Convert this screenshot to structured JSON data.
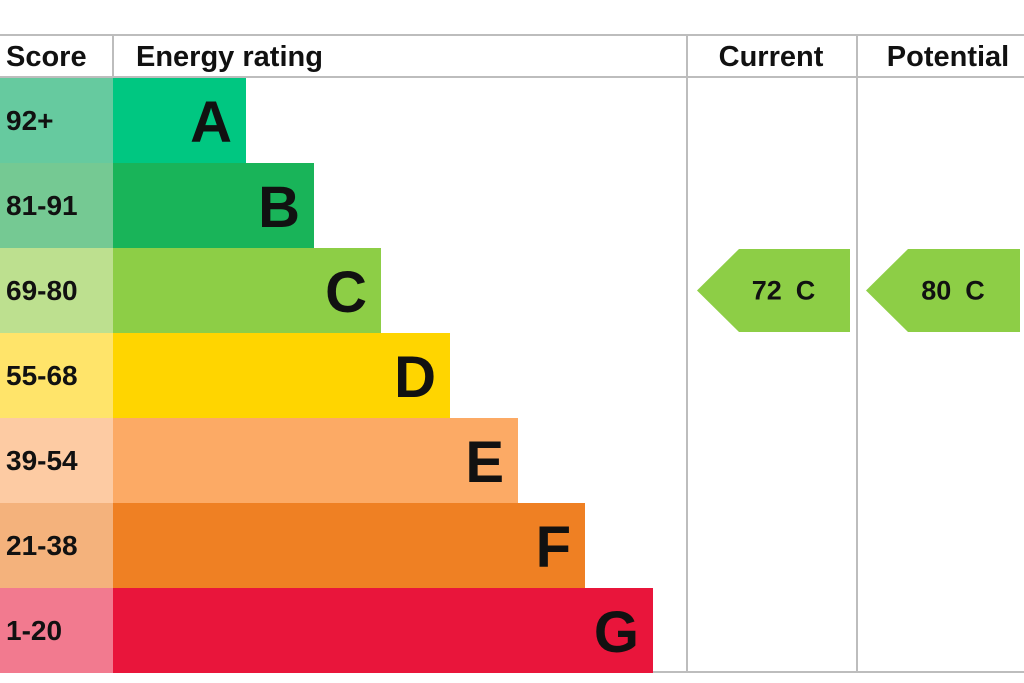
{
  "header": {
    "score": "Score",
    "rating": "Energy rating",
    "current": "Current",
    "potential": "Potential"
  },
  "rows": [
    {
      "score": "92+",
      "band": "A"
    },
    {
      "score": "81-91",
      "band": "B"
    },
    {
      "score": "69-80",
      "band": "C"
    },
    {
      "score": "55-68",
      "band": "D"
    },
    {
      "score": "39-54",
      "band": "E"
    },
    {
      "score": "21-38",
      "band": "F"
    },
    {
      "score": "1-20",
      "band": "G"
    }
  ],
  "current": {
    "score": 72,
    "band": "C"
  },
  "potential": {
    "score": 80,
    "band": "C"
  }
}
